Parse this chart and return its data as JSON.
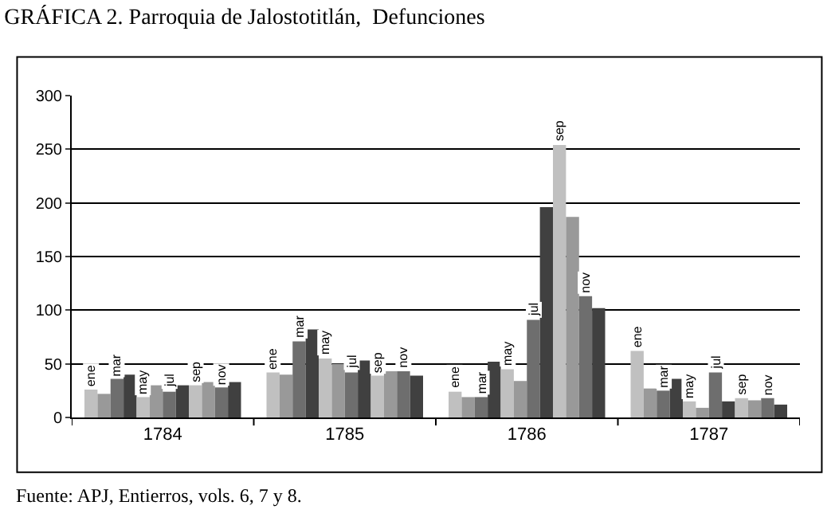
{
  "chart_data": {
    "type": "bar",
    "title": "GRÁFICA 2. Parroquia de Jalostotitlán,  Defunciones",
    "categories": [
      "1784",
      "1785",
      "1786",
      "1787"
    ],
    "series": [
      {
        "name": "ene",
        "color": "#c0c0c0",
        "values": [
          26,
          42,
          24,
          62
        ]
      },
      {
        "color": "#999999",
        "values": [
          22,
          40,
          19,
          27
        ]
      },
      {
        "name": "mar",
        "color": "#6e6e6e",
        "values": [
          36,
          71,
          19,
          25
        ]
      },
      {
        "color": "#404040",
        "values": [
          40,
          82,
          52,
          36
        ]
      },
      {
        "name": "may",
        "color": "#c0c0c0",
        "values": [
          19,
          55,
          45,
          15
        ]
      },
      {
        "color": "#999999",
        "values": [
          30,
          50,
          34,
          9
        ]
      },
      {
        "name": "jul",
        "color": "#6e6e6e",
        "values": [
          24,
          42,
          91,
          42
        ]
      },
      {
        "color": "#404040",
        "values": [
          30,
          53,
          196,
          15
        ]
      },
      {
        "name": "sep",
        "color": "#c0c0c0",
        "values": [
          30,
          39,
          254,
          18
        ]
      },
      {
        "color": "#999999",
        "values": [
          33,
          43,
          187,
          16
        ]
      },
      {
        "name": "nov",
        "color": "#6e6e6e",
        "values": [
          28,
          43,
          113,
          18
        ]
      },
      {
        "color": "#404040",
        "values": [
          33,
          39,
          102,
          12
        ]
      }
    ],
    "ylim": [
      0,
      300
    ],
    "yticks": [
      0,
      50,
      100,
      150,
      200,
      250,
      300
    ],
    "grid": "y",
    "legend": false,
    "annotations": [
      "Fuente: APJ, Entierros, vols. 6, 7 y 8."
    ]
  }
}
